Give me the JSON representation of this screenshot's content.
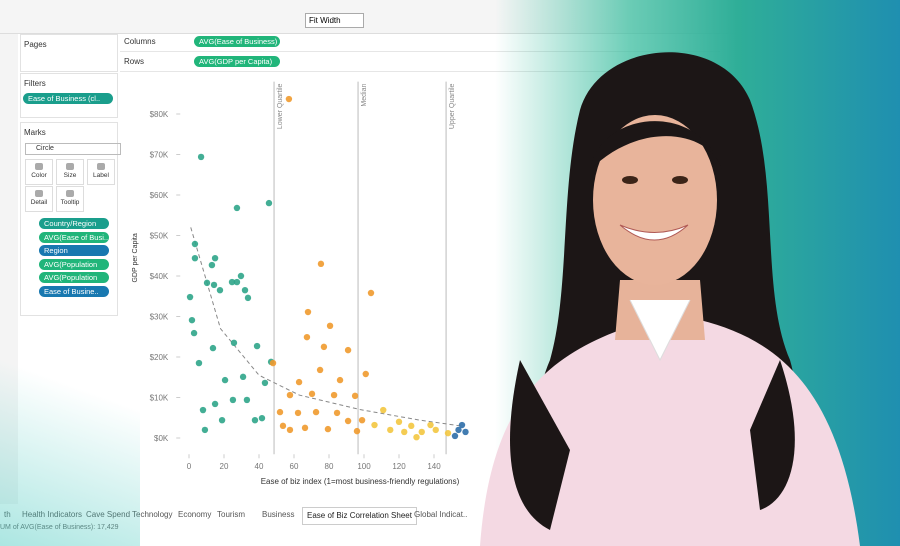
{
  "toolbar": {
    "fit": "Fit Width"
  },
  "sidebar": {
    "pages": "Pages",
    "filters": "Filters",
    "filter_pill": "Ease of Business (cl..",
    "marks": "Marks",
    "mark_type": "Circle",
    "mark_buttons": [
      "Color",
      "Size",
      "Label",
      "Detail",
      "Tooltip"
    ],
    "mark_pills": [
      "Country/Region",
      "AVG(Ease of Busi..",
      "Region",
      "AVG(Population",
      "AVG(Population",
      "Ease of Busine.."
    ]
  },
  "shelves": {
    "columns": "Columns",
    "columns_pill": "AVG(Ease of Business)",
    "rows": "Rows",
    "rows_pill": "AVG(GDP per Capita)"
  },
  "tabs": [
    "th",
    "Health Indicators",
    "Cave Spend",
    "Technology",
    "Economy",
    "Tourism",
    "Business",
    "Ease of Biz Correlation Sheet",
    "Global Indicat.."
  ],
  "status": "UM of AVG(Ease of Business): 17,429",
  "chart_data": {
    "type": "scatter",
    "xlabel": "Ease of biz index (1=most business-friendly regulations)",
    "ylabel": "GDP per Capita",
    "xlim": [
      -5,
      160
    ],
    "ylim": [
      -4,
      88
    ],
    "xticks": [
      0,
      20,
      40,
      60,
      80,
      100,
      120,
      140
    ],
    "yticks": [
      {
        "value": 0,
        "label": "$0K"
      },
      {
        "value": 10,
        "label": "$10K"
      },
      {
        "value": 20,
        "label": "$20K"
      },
      {
        "value": 30,
        "label": "$30K"
      },
      {
        "value": 40,
        "label": "$40K"
      },
      {
        "value": 50,
        "label": "$50K"
      },
      {
        "value": 60,
        "label": "$60K"
      },
      {
        "value": 70,
        "label": "$70K"
      },
      {
        "value": 80,
        "label": "$80K"
      }
    ],
    "reference_lines": [
      {
        "label": "Lower Quartile",
        "value": 48.6
      },
      {
        "label": "Median",
        "value": 96.6
      },
      {
        "label": "Upper Quartile",
        "value": 146.9
      }
    ],
    "trend_line": {
      "x": [
        1,
        18,
        40,
        63,
        98,
        132,
        155
      ],
      "y": [
        52,
        27,
        15.5,
        10.6,
        7,
        4.4,
        3
      ]
    },
    "series": [
      {
        "color": "#2fa58a",
        "x": [
          6.9,
          27.4,
          45.7,
          3.4,
          3.4,
          14.9,
          13.1,
          10.3,
          14.3,
          17.7,
          24.6,
          27.4,
          29.7,
          32,
          33.7,
          0.6,
          1.7,
          2.9,
          13.7,
          25.7,
          38.9,
          46.9,
          5.7,
          20.6,
          30.9,
          43.4,
          25.1,
          14.9,
          8,
          37.7,
          41.7,
          9.1,
          18.9,
          33.1
        ],
        "values": [
          69.4,
          56.8,
          58,
          47.9,
          44.4,
          44.4,
          42.7,
          38.3,
          37.8,
          36.5,
          38.5,
          38.5,
          40,
          36.5,
          34.6,
          34.8,
          29.1,
          25.9,
          22.2,
          23.5,
          22.7,
          18.8,
          18.5,
          14.3,
          15.1,
          13.6,
          9.4,
          8.4,
          6.9,
          4.4,
          4.9,
          2,
          4.4,
          9.4
        ]
      },
      {
        "color": "#ef9a2e",
        "x": [
          57.1,
          75.4,
          104,
          68,
          80.6,
          67.4,
          77.1,
          90.9,
          48,
          74.9,
          62.9,
          86.3,
          101,
          70.3,
          57.7,
          82.9,
          94.9,
          52,
          62.3,
          72.6,
          84.6,
          90.9,
          57.7,
          66.3,
          79.4,
          96,
          53.7,
          98.9
        ],
        "values": [
          83.7,
          43,
          35.8,
          31.1,
          27.7,
          24.9,
          22.5,
          21.7,
          18.5,
          16.8,
          13.8,
          14.3,
          15.8,
          10.9,
          10.6,
          10.6,
          10.4,
          6.4,
          6.2,
          6.4,
          6.2,
          4.2,
          2,
          2.5,
          2.2,
          1.7,
          3,
          4.4
        ]
      },
      {
        "color": "#f3c640",
        "x": [
          111,
          120,
          127,
          133,
          141,
          148,
          115,
          123,
          106,
          138,
          130
        ],
        "values": [
          6.9,
          4,
          3,
          1.5,
          2,
          1.2,
          2,
          1.5,
          3.2,
          3.2,
          0.2
        ]
      },
      {
        "color": "#2d6ea8",
        "x": [
          154,
          156,
          152,
          158
        ],
        "values": [
          2,
          3.2,
          0.5,
          1.5
        ]
      }
    ]
  }
}
